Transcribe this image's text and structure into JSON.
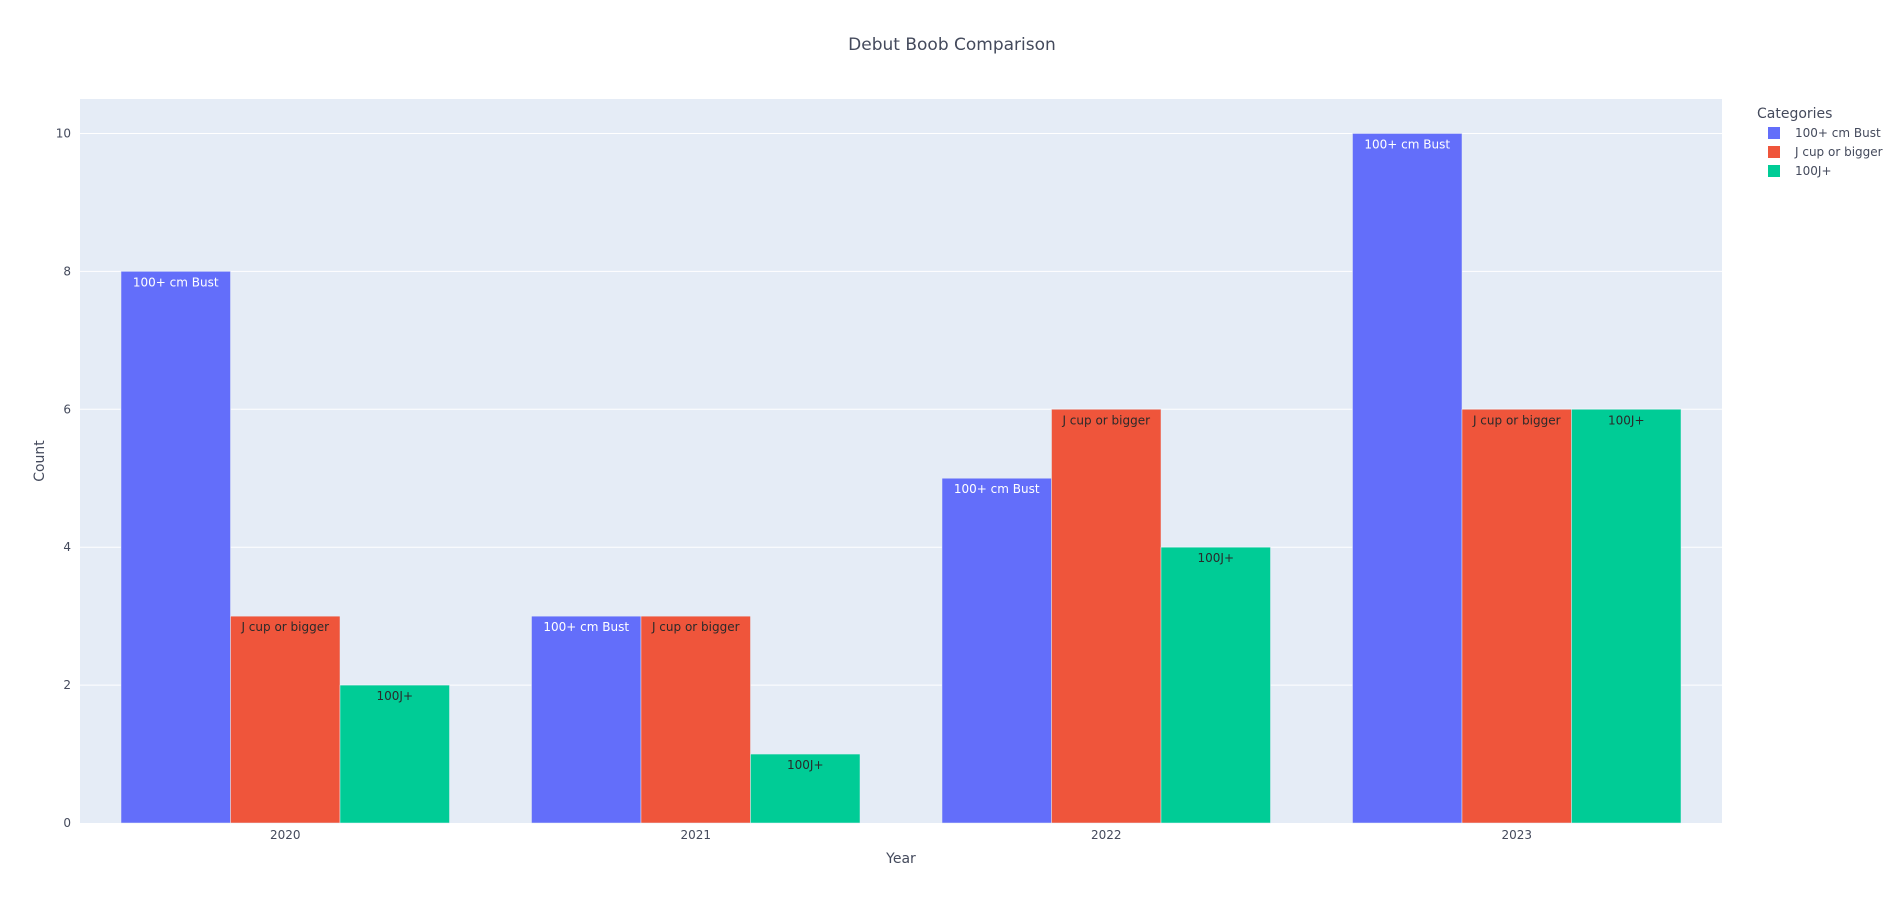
{
  "chart_data": {
    "type": "bar",
    "title": "Debut Boob Comparison",
    "xlabel": "Year",
    "ylabel": "Count",
    "categories": [
      "2020",
      "2021",
      "2022",
      "2023"
    ],
    "ylim": [
      0,
      10.5
    ],
    "yticks": [
      0,
      2,
      4,
      6,
      8,
      10
    ],
    "grid": true,
    "legend": {
      "title": "Categories",
      "position": "right"
    },
    "background": "#e5ecf6",
    "series": [
      {
        "name": "100+ cm Bust",
        "color": "#636efa",
        "label_color": "#ffffff",
        "values": [
          8,
          3,
          5,
          10
        ]
      },
      {
        "name": "J cup or bigger",
        "color": "#ef553b",
        "label_color": "#2a2a2a",
        "values": [
          3,
          3,
          6,
          6
        ]
      },
      {
        "name": "100J+",
        "color": "#00cc96",
        "label_color": "#2a2a2a",
        "values": [
          2,
          1,
          4,
          6
        ]
      }
    ]
  }
}
